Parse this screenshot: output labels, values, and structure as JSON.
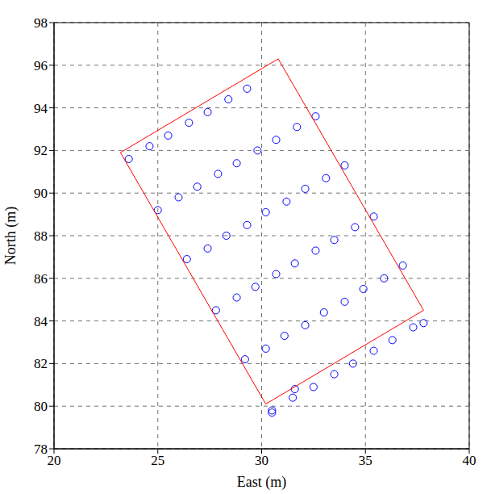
{
  "chart_data": {
    "type": "scatter",
    "x_label": "East (m)",
    "y_label": "North (m)",
    "xlim": [
      20,
      40
    ],
    "xticks": [
      20,
      25,
      30,
      35,
      40
    ],
    "ylim": [
      78,
      98
    ],
    "yticks": [
      78,
      80,
      82,
      84,
      86,
      88,
      90,
      92,
      94,
      96,
      98
    ],
    "grid": true,
    "series": [
      {
        "type": "scatter",
        "color": "#0000ff",
        "marker": "o",
        "x": [
          23.6,
          25.0,
          26.4,
          27.8,
          29.2,
          30.5,
          24.6,
          26.0,
          27.4,
          28.8,
          30.2,
          31.5,
          25.5,
          26.9,
          28.3,
          29.7,
          31.1,
          32.5,
          26.5,
          27.9,
          29.3,
          30.7,
          32.1,
          33.5,
          27.4,
          28.8,
          30.2,
          31.6,
          33.0,
          34.4,
          28.4,
          29.8,
          31.2,
          32.6,
          34.0,
          35.4,
          29.3,
          30.7,
          32.1,
          33.5,
          34.9,
          36.3,
          31.7,
          33.1,
          34.5,
          35.9,
          37.3,
          32.6,
          34.0,
          35.4,
          36.8,
          37.8,
          31.6,
          30.5
        ],
        "y": [
          91.6,
          89.2,
          86.9,
          84.5,
          82.2,
          79.8,
          92.2,
          89.8,
          87.4,
          85.1,
          82.7,
          80.4,
          92.7,
          90.3,
          88.0,
          85.6,
          83.3,
          80.9,
          93.3,
          90.9,
          88.5,
          86.2,
          83.8,
          81.5,
          93.8,
          91.4,
          89.1,
          86.7,
          84.4,
          82.0,
          94.4,
          92.0,
          89.6,
          87.3,
          84.9,
          82.6,
          94.9,
          92.5,
          90.2,
          87.8,
          85.5,
          83.1,
          93.1,
          90.7,
          88.4,
          86.0,
          83.7,
          93.6,
          91.3,
          88.9,
          86.6,
          83.9,
          80.8,
          79.7
        ]
      },
      {
        "type": "line",
        "color": "#ff0000",
        "line_style": "solid",
        "x": [
          23.2,
          30.8,
          37.8,
          30.2,
          23.2
        ],
        "y": [
          91.9,
          96.3,
          84.5,
          80.1,
          91.9
        ]
      }
    ]
  }
}
